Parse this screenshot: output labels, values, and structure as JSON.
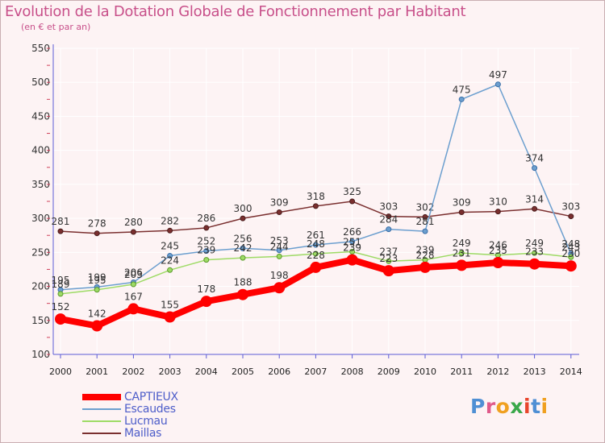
{
  "page": {
    "title": "Evolution de la Dotation Globale de Fonctionnement par Habitant",
    "subtitle": "(en € et par an)"
  },
  "logo": {
    "text": "Proxiti"
  },
  "colors": {
    "background": "#fdf3f4",
    "title": "#c8508a",
    "axis": "#5b5bd6",
    "grid": "#ffffff"
  },
  "chart_data": {
    "type": "line",
    "title": "Evolution de la Dotation Globale de Fonctionnement par Habitant",
    "subtitle": "(en € et par an)",
    "xlabel": "",
    "ylabel": "",
    "ylim": [
      100,
      550
    ],
    "yticks": [
      100,
      150,
      200,
      250,
      300,
      350,
      400,
      450,
      500,
      550
    ],
    "grid": true,
    "legend_position": "bottom-left",
    "x": [
      "2000",
      "2001",
      "2002",
      "2003",
      "2004",
      "2005",
      "2006",
      "2007",
      "2008",
      "2009",
      "2010",
      "2011",
      "2012",
      "2013",
      "2014"
    ],
    "series": [
      {
        "name": "Maillas",
        "color": "#7a2f2f",
        "values": [
          281,
          278,
          280,
          282,
          286,
          300,
          309,
          318,
          325,
          303,
          302,
          309,
          310,
          314,
          303
        ]
      },
      {
        "name": "Escaudes",
        "color": "#6c9fcf",
        "values": [
          195,
          199,
          206,
          245,
          252,
          256,
          253,
          261,
          266,
          284,
          281,
          475,
          497,
          374,
          248
        ]
      },
      {
        "name": "Lucmau",
        "color": "#9edb66",
        "values": [
          189,
          195,
          203,
          224,
          239,
          242,
          244,
          248,
          251,
          237,
          239,
          249,
          246,
          249,
          243
        ]
      },
      {
        "name": "CAPTIEUX",
        "color": "#ff0000",
        "values": [
          152,
          142,
          167,
          155,
          178,
          188,
          198,
          228,
          239,
          223,
          228,
          231,
          235,
          233,
          230
        ]
      }
    ],
    "legend_order": [
      "CAPTIEUX",
      "Escaudes",
      "Lucmau",
      "Maillas"
    ]
  }
}
